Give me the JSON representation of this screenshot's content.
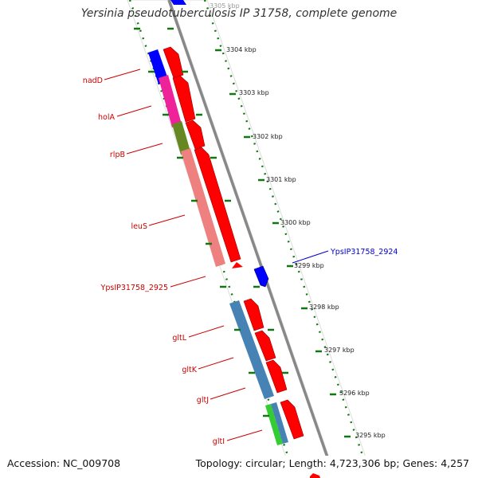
{
  "title": "Yersinia pseudotuberculosis IP 31758, complete genome",
  "footer": {
    "accession": "Accession: NC_009708",
    "summary": "Topology: circular; Length: 4,723,306 bp; Genes: 4,257"
  },
  "colors": {
    "strand_line": "#888888",
    "tick": "#117711",
    "gene_label": "#cc0000",
    "highlight_label": "#0000cc",
    "cds": "#ff0000"
  },
  "kbp_ticks": [
    {
      "label": "3305 kbp",
      "partial": true
    },
    {
      "label": "3304 kbp"
    },
    {
      "label": "3303 kbp"
    },
    {
      "label": "3302 kbp"
    },
    {
      "label": "3301 kbp"
    },
    {
      "label": "3300 kbp"
    },
    {
      "label": "3299 kbp"
    },
    {
      "label": "3298 kbp"
    },
    {
      "label": "3297 kbp"
    },
    {
      "label": "3296 kbp"
    },
    {
      "label": "3295 kbp"
    }
  ],
  "genes": [
    {
      "name": "nadD",
      "color": "#0000ff"
    },
    {
      "name": "holA",
      "color": "#ee2299"
    },
    {
      "name": "rlpB",
      "color": "#668822"
    },
    {
      "name": "leuS",
      "color": "#ee8080"
    },
    {
      "name": "YpsIP31758_2925",
      "color": "#ff0000"
    },
    {
      "name": "gltL",
      "color": "#4682b4"
    },
    {
      "name": "gltK",
      "color": "#4682b4"
    },
    {
      "name": "gltJ",
      "color": "#4682b4"
    },
    {
      "name": "gltI",
      "color": "#33cc33"
    },
    {
      "name": "YpsIP31758_2924",
      "color": "#0000ff"
    }
  ]
}
